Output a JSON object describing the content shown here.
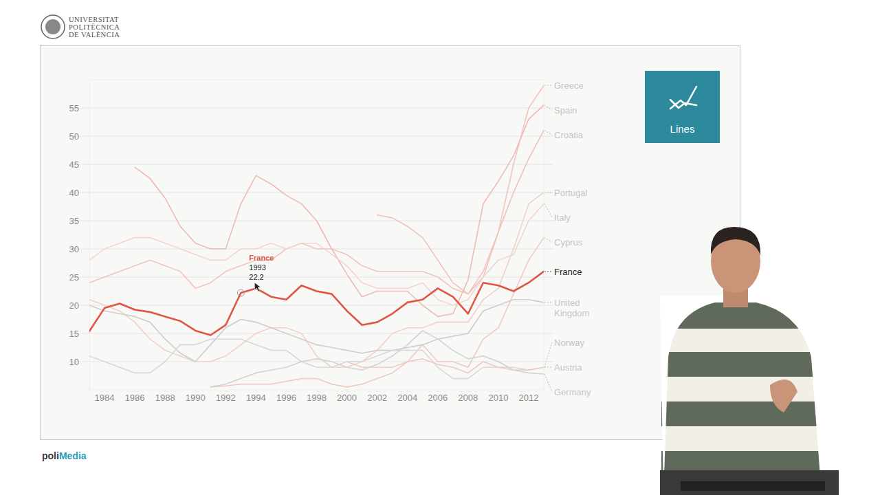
{
  "page": {
    "institution": [
      "UNIVERSITAT",
      "POLITÈCNICA",
      "DE VALÈNCIA"
    ],
    "brand": [
      "poli",
      "Media"
    ],
    "badge": "Lines"
  },
  "chart_data": {
    "type": "line",
    "x": [
      1983,
      1984,
      1985,
      1986,
      1987,
      1988,
      1989,
      1990,
      1991,
      1992,
      1993,
      1994,
      1995,
      1996,
      1997,
      1998,
      1999,
      2000,
      2001,
      2002,
      2003,
      2004,
      2005,
      2006,
      2007,
      2008,
      2009,
      2010,
      2011,
      2012,
      2013
    ],
    "xlim": [
      1983,
      2013
    ],
    "xticks": [
      1984,
      1986,
      1988,
      1990,
      1992,
      1994,
      1996,
      1998,
      2000,
      2002,
      2004,
      2006,
      2008,
      2010,
      2012
    ],
    "ylim": [
      5,
      60
    ],
    "yticks": [
      10,
      15,
      20,
      25,
      30,
      35,
      40,
      45,
      50,
      55
    ],
    "grid": true,
    "tooltip": {
      "name": "France",
      "x": 1993,
      "y": 22.2
    },
    "series": [
      {
        "name": "Greece",
        "color": "#f4c3bc",
        "values": [
          24,
          25,
          26,
          27,
          28,
          27,
          26,
          23,
          24,
          26,
          27,
          28,
          28,
          30,
          31,
          30,
          30,
          29,
          27,
          26,
          26,
          26,
          26,
          25,
          23,
          22,
          26,
          33,
          45,
          55,
          59
        ]
      },
      {
        "name": "Spain",
        "color": "#eebab3",
        "values": [
          null,
          null,
          null,
          44.5,
          42.5,
          39,
          34,
          31,
          30,
          30,
          38,
          43,
          41.5,
          39.5,
          38,
          35,
          30,
          25.5,
          21.5,
          22.5,
          22.5,
          22.5,
          20,
          18,
          18.5,
          24.5,
          38,
          42,
          46.5,
          53,
          55.5
        ]
      },
      {
        "name": "Croatia",
        "color": "#f0c0ba",
        "values": [
          null,
          null,
          null,
          null,
          null,
          null,
          null,
          null,
          null,
          null,
          null,
          null,
          null,
          null,
          null,
          null,
          null,
          null,
          null,
          36,
          35.5,
          34,
          32,
          28,
          24,
          22,
          25,
          33,
          40,
          46,
          51
        ]
      },
      {
        "name": "Portugal",
        "color": "#f3cfca",
        "values": [
          21,
          20,
          19,
          17,
          14,
          12,
          11,
          10,
          10,
          11,
          13,
          15,
          16,
          16,
          15,
          11,
          9,
          9,
          10,
          12,
          15,
          16,
          16,
          17,
          17,
          17,
          21,
          23,
          30,
          38,
          40
        ]
      },
      {
        "name": "Italy",
        "color": "#f5d4cf",
        "values": [
          28,
          30,
          31,
          32,
          32,
          31,
          30,
          29,
          28,
          28,
          30,
          30,
          31,
          30,
          31,
          31,
          29,
          27,
          24,
          23,
          23,
          23,
          24,
          21,
          20,
          21,
          25,
          28,
          29,
          35,
          38
        ]
      },
      {
        "name": "Cyprus",
        "color": "#f1c9c3",
        "values": [
          null,
          null,
          null,
          null,
          null,
          null,
          null,
          null,
          null,
          null,
          null,
          null,
          null,
          null,
          null,
          null,
          null,
          10,
          9,
          9,
          9,
          10,
          13,
          10,
          10,
          9,
          14,
          16,
          22,
          28,
          32
        ]
      },
      {
        "name": "United Kingdom",
        "color": "#cdcdcd",
        "values": [
          20,
          19,
          18.5,
          18,
          17,
          14,
          11.5,
          10,
          13,
          16,
          17.5,
          17,
          16,
          15,
          14,
          13,
          12.5,
          12,
          11.5,
          12,
          12,
          12.5,
          13,
          14,
          14.5,
          15,
          19,
          20,
          21,
          21,
          20.5
        ]
      },
      {
        "name": "Norway",
        "color": "#d8d8d8",
        "values": [
          11,
          10,
          9,
          8,
          8,
          10,
          13,
          13,
          14,
          14,
          14,
          13,
          12,
          12,
          10,
          9,
          9,
          10,
          10,
          11,
          12,
          12,
          12,
          9,
          7,
          7,
          9,
          9,
          9,
          8.5,
          9
        ]
      },
      {
        "name": "Austria",
        "color": "#efc8c3",
        "values": [
          null,
          null,
          null,
          null,
          null,
          null,
          null,
          null,
          5.5,
          5.7,
          6,
          6,
          6,
          6.5,
          7,
          7,
          6,
          5.5,
          6,
          7,
          8,
          10,
          10.5,
          9.5,
          9,
          8,
          10,
          9,
          8.5,
          8.5,
          9
        ]
      },
      {
        "name": "Germany",
        "color": "#d2d2d2",
        "values": [
          null,
          null,
          null,
          null,
          null,
          null,
          null,
          null,
          5.5,
          6,
          7,
          8,
          8.5,
          9,
          10,
          10.5,
          10,
          9,
          8.5,
          9.5,
          11,
          13,
          15.5,
          14,
          12,
          10.5,
          11,
          10,
          8.5,
          8,
          7.8
        ]
      },
      {
        "name": "France",
        "color": "#e05544",
        "values": [
          15.4,
          19.5,
          20.3,
          19.2,
          18.8,
          18,
          17.2,
          15.5,
          14.7,
          16.5,
          22.2,
          23,
          21.5,
          21,
          23.5,
          22.5,
          22,
          19,
          16.5,
          17,
          18.5,
          20.5,
          21,
          23,
          21.5,
          18.5,
          24,
          23.5,
          22.5,
          24,
          26
        ]
      }
    ]
  }
}
